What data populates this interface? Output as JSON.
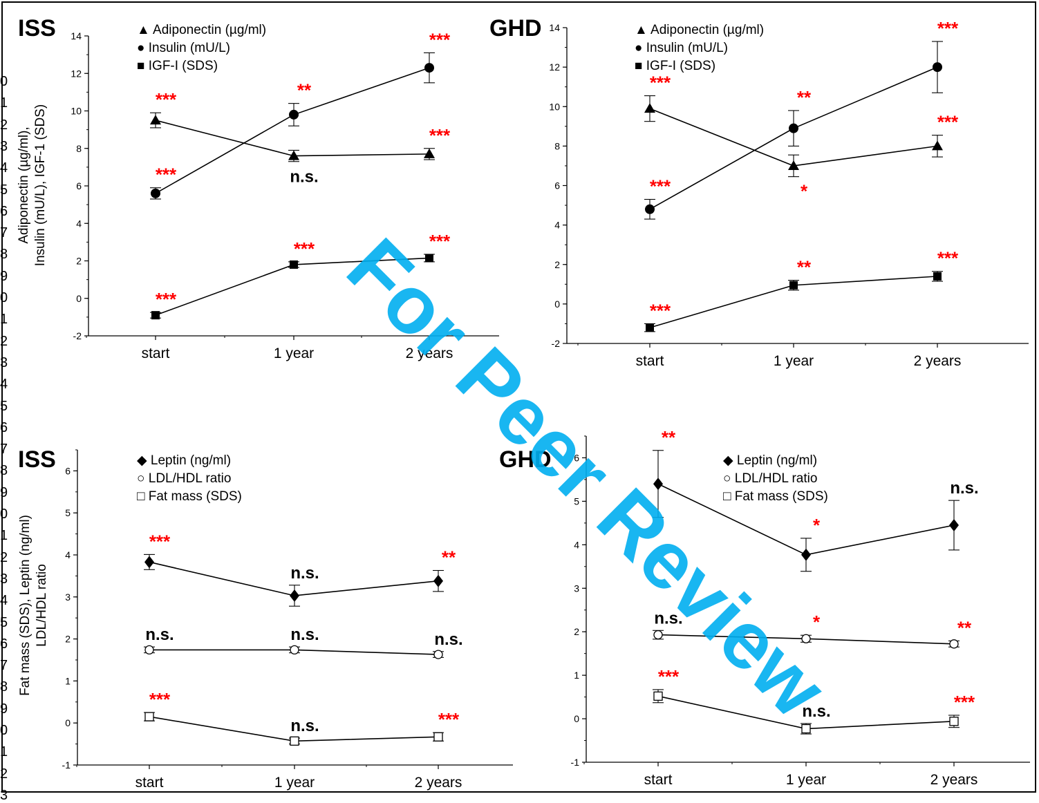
{
  "watermark": "For Peer Review",
  "watermark_color": "#00aeef",
  "significance_color": "#ff0000",
  "margin_line_numbers": [
    "0",
    "1",
    "2",
    "3",
    "4",
    "5",
    "6",
    "7",
    "8",
    "9",
    "0",
    "1",
    "2",
    "3",
    "4",
    "5",
    "6",
    "7",
    "8",
    "9",
    "0",
    "1",
    "2",
    "3",
    "4",
    "5",
    "6",
    "7",
    "8",
    "9",
    "0",
    "1",
    "2",
    "3"
  ],
  "chart_data": [
    {
      "type": "line",
      "panel_label": "ISS",
      "ylabel": [
        "Adiponectin (µg/ml),",
        "Insulin (mU/L), IGF-1 (SDS)"
      ],
      "xlabel": "",
      "categories": [
        "start",
        "1 year",
        "2 years"
      ],
      "ylim": [
        -2,
        14
      ],
      "yticks": [
        "-2",
        "0",
        "2",
        "4",
        "6",
        "8",
        "10",
        "12",
        "14"
      ],
      "legend": [
        "Adiponectin (µg/ml)",
        "Insulin (mU/L)",
        "IGF-I (SDS)"
      ],
      "legend_position": "top-left",
      "series": [
        {
          "name": "Adiponectin (µg/ml)",
          "marker": "triangle",
          "values": [
            9.5,
            7.6,
            7.7
          ],
          "errors": [
            0.4,
            0.3,
            0.3
          ],
          "labels": [
            "***",
            "n.s.",
            "***"
          ]
        },
        {
          "name": "Insulin (mU/L)",
          "marker": "circle",
          "values": [
            5.6,
            9.8,
            12.3
          ],
          "errors": [
            0.3,
            0.6,
            0.8
          ],
          "labels": [
            "***",
            "**",
            "***"
          ]
        },
        {
          "name": "IGF-I (SDS)",
          "marker": "square",
          "values": [
            -0.9,
            1.8,
            2.15
          ],
          "errors": [
            0.15,
            0.15,
            0.2
          ],
          "labels": [
            "***",
            "***",
            "***"
          ]
        }
      ]
    },
    {
      "type": "line",
      "panel_label": "GHD",
      "ylabel": [],
      "xlabel": "",
      "categories": [
        "start",
        "1 year",
        "2 years"
      ],
      "ylim": [
        -2,
        14
      ],
      "yticks": [
        "-2",
        "0",
        "2",
        "4",
        "6",
        "8",
        "10",
        "12",
        "14"
      ],
      "legend": [
        "Adiponectin (µg/ml)",
        "Insulin (mU/L)",
        "IGF-I (SDS)"
      ],
      "legend_position": "top-left",
      "series": [
        {
          "name": "Adiponectin (µg/ml)",
          "marker": "triangle",
          "values": [
            9.9,
            7.0,
            8.0
          ],
          "errors": [
            0.65,
            0.55,
            0.55
          ],
          "labels": [
            "***",
            "*",
            "***"
          ]
        },
        {
          "name": "Insulin (mU/L)",
          "marker": "circle",
          "values": [
            4.8,
            8.9,
            12.0
          ],
          "errors": [
            0.5,
            0.9,
            1.3
          ],
          "labels": [
            "***",
            "**",
            "***"
          ]
        },
        {
          "name": "IGF-I (SDS)",
          "marker": "square",
          "values": [
            -1.2,
            0.95,
            1.4
          ],
          "errors": [
            0.2,
            0.25,
            0.25
          ],
          "labels": [
            "***",
            "**",
            "***"
          ]
        }
      ]
    },
    {
      "type": "line",
      "panel_label": "ISS",
      "ylabel": [
        "Fat mass (SDS), Leptin (ng/ml)",
        "LDL/HDL ratio"
      ],
      "xlabel": "",
      "categories": [
        "start",
        "1 year",
        "2 years"
      ],
      "ylim": [
        -1,
        6.5
      ],
      "yticks": [
        "-1",
        "0",
        "1",
        "2",
        "3",
        "4",
        "5",
        "6"
      ],
      "legend": [
        "Leptin (ng/ml)",
        "LDL/HDL ratio",
        "Fat mass (SDS)"
      ],
      "legend_position": "top-left",
      "series": [
        {
          "name": "Leptin (ng/ml)",
          "marker": "diamond",
          "values": [
            3.83,
            3.03,
            3.38
          ],
          "errors": [
            0.18,
            0.25,
            0.25
          ],
          "labels": [
            "***",
            "n.s.",
            "**"
          ]
        },
        {
          "name": "LDL/HDL ratio",
          "marker": "open-circle",
          "values": [
            1.74,
            1.74,
            1.63
          ],
          "errors": [
            0.07,
            0.07,
            0.07
          ],
          "labels": [
            "n.s.",
            "n.s.",
            "n.s."
          ]
        },
        {
          "name": "Fat mass (SDS)",
          "marker": "open-square",
          "values": [
            0.15,
            -0.43,
            -0.33
          ],
          "errors": [
            0.1,
            0.07,
            0.1
          ],
          "labels": [
            "***",
            "n.s.",
            "***"
          ]
        }
      ]
    },
    {
      "type": "line",
      "panel_label": "GHD",
      "ylabel": [],
      "xlabel": "",
      "categories": [
        "start",
        "1 year",
        "2 years"
      ],
      "ylim": [
        -1,
        6.5
      ],
      "yticks": [
        "-1",
        "0",
        "1",
        "2",
        "3",
        "4",
        "5",
        "6"
      ],
      "legend": [
        "Leptin (ng/ml)",
        "LDL/HDL ratio",
        "Fat mass (SDS)"
      ],
      "legend_position": "top-left",
      "series": [
        {
          "name": "Leptin (ng/ml)",
          "marker": "diamond",
          "values": [
            5.4,
            3.77,
            4.45
          ],
          "errors": [
            0.77,
            0.38,
            0.57
          ],
          "labels": [
            "**",
            "*",
            "n.s."
          ]
        },
        {
          "name": "LDL/HDL ratio",
          "marker": "open-circle",
          "values": [
            1.93,
            1.84,
            1.72
          ],
          "errors": [
            0.1,
            0.08,
            0.07
          ],
          "labels": [
            "n.s.",
            "*",
            "**"
          ]
        },
        {
          "name": "Fat mass (SDS)",
          "marker": "open-square",
          "values": [
            0.52,
            -0.23,
            -0.06
          ],
          "errors": [
            0.15,
            0.12,
            0.14
          ],
          "labels": [
            "***",
            "n.s.",
            "***"
          ]
        }
      ]
    }
  ]
}
